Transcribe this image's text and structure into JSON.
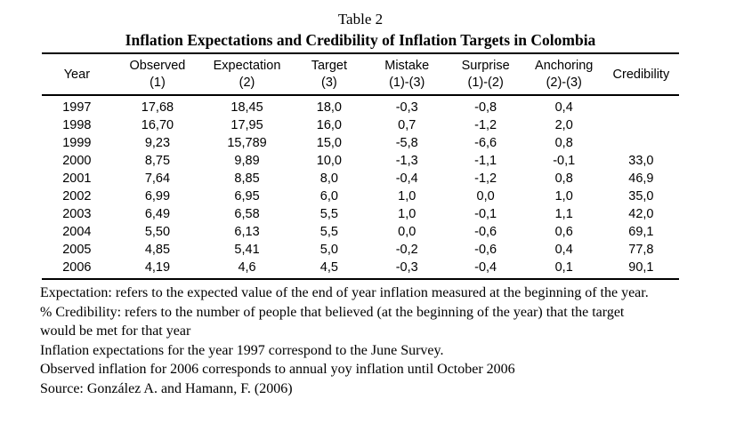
{
  "page": {
    "title": "Table 2",
    "subtitle": "Inflation Expectations and Credibility of Inflation Targets in Colombia"
  },
  "table": {
    "columns": [
      {
        "label": "Year",
        "sub": ""
      },
      {
        "label": "Observed",
        "sub": "(1)"
      },
      {
        "label": "Expectation",
        "sub": "(2)"
      },
      {
        "label": "Target",
        "sub": "(3)"
      },
      {
        "label": "Mistake",
        "sub": "(1)-(3)"
      },
      {
        "label": "Surprise",
        "sub": "(1)-(2)"
      },
      {
        "label": "Anchoring",
        "sub": "(2)-(3)"
      },
      {
        "label": "Credibility",
        "sub": ""
      }
    ],
    "rows": [
      [
        "1997",
        "17,68",
        "18,45",
        "18,0",
        "-0,3",
        "-0,8",
        "0,4",
        ""
      ],
      [
        "1998",
        "16,70",
        "17,95",
        "16,0",
        "0,7",
        "-1,2",
        "2,0",
        ""
      ],
      [
        "1999",
        "9,23",
        "15,789",
        "15,0",
        "-5,8",
        "-6,6",
        "0,8",
        ""
      ],
      [
        "2000",
        "8,75",
        "9,89",
        "10,0",
        "-1,3",
        "-1,1",
        "-0,1",
        "33,0"
      ],
      [
        "2001",
        "7,64",
        "8,85",
        "8,0",
        "-0,4",
        "-1,2",
        "0,8",
        "46,9"
      ],
      [
        "2002",
        "6,99",
        "6,95",
        "6,0",
        "1,0",
        "0,0",
        "1,0",
        "35,0"
      ],
      [
        "2003",
        "6,49",
        "6,58",
        "5,5",
        "1,0",
        "-0,1",
        "1,1",
        "42,0"
      ],
      [
        "2004",
        "5,50",
        "6,13",
        "5,5",
        "0,0",
        "-0,6",
        "0,6",
        "69,1"
      ],
      [
        "2005",
        "4,85",
        "5,41",
        "5,0",
        "-0,2",
        "-0,6",
        "0,4",
        "77,8"
      ],
      [
        "2006",
        "4,19",
        "4,6",
        "4,5",
        "-0,3",
        "-0,4",
        "0,1",
        "90,1"
      ]
    ]
  },
  "footnotes": {
    "lines": [
      "Expectation: refers to the expected value of the end of year inflation measured at the beginning of the year.",
      "% Credibility: refers to the number of people that believed (at the beginning of the year) that the target",
      "would be met for that year",
      "Inflation expectations for the year 1997 correspond to the June Survey.",
      "Observed inflation for 2006 corresponds to annual yoy inflation until October 2006",
      "Source: González A. and Hamann, F. (2006)"
    ]
  },
  "colors": {
    "text": "#000000",
    "background": "#ffffff",
    "rule": "#000000"
  }
}
